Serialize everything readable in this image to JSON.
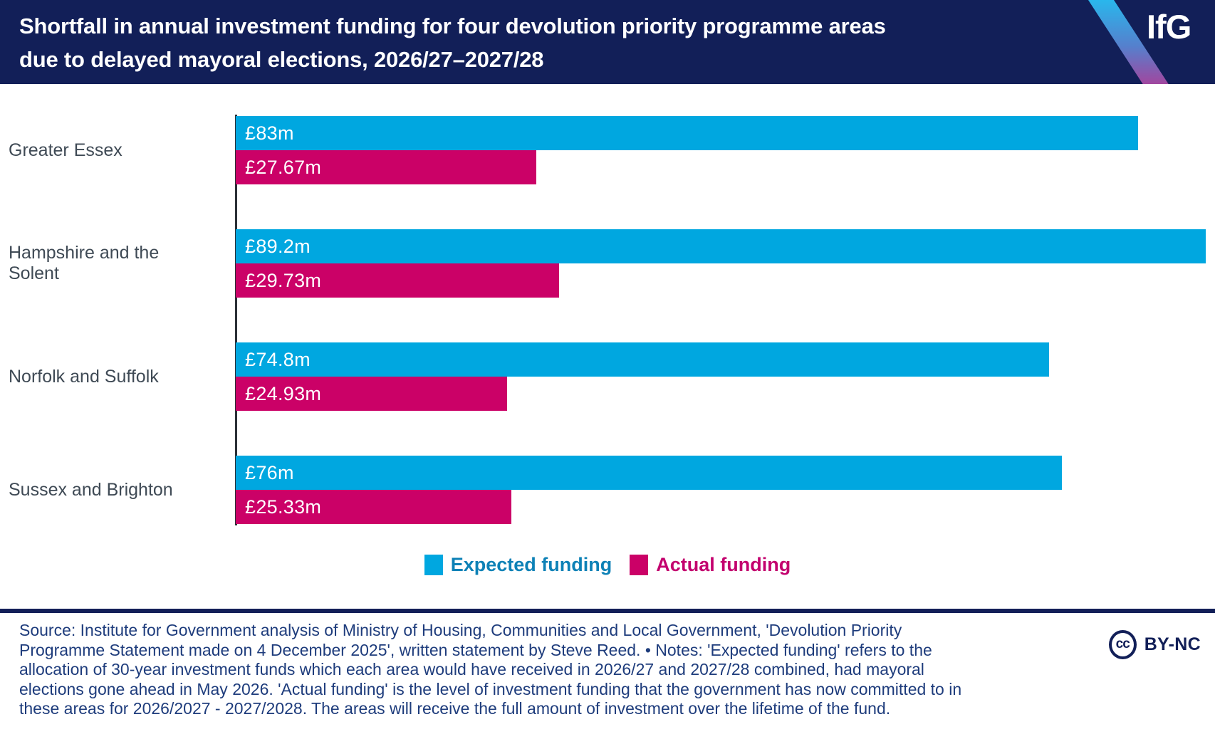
{
  "header": {
    "title": "Shortfall in annual investment funding for four devolution priority programme areas\ndue to delayed mayoral elections, 2026/27–2027/28",
    "logo": "IfG"
  },
  "chart_data": {
    "type": "bar",
    "orientation": "horizontal",
    "title": "Shortfall in annual investment funding for four devolution priority programme areas due to delayed mayoral elections, 2026/27–2027/28",
    "categories": [
      "Greater Essex",
      "Hampshire and the Solent",
      "Norfolk and Suffolk",
      "Sussex and Brighton"
    ],
    "series": [
      {
        "name": "Expected funding",
        "color": "#00a7e0",
        "values": [
          83,
          89.2,
          74.8,
          76
        ],
        "labels": [
          "£83m",
          "£89.2m",
          "£74.8m",
          "£76m"
        ]
      },
      {
        "name": "Actual funding",
        "color": "#cb0167",
        "values": [
          27.67,
          29.73,
          24.93,
          25.33
        ],
        "labels": [
          "£27.67m",
          "£29.73m",
          "£24.93m",
          "£25.33m"
        ]
      }
    ],
    "unit": "£m",
    "xlim": [
      0,
      89.2
    ],
    "grid": false,
    "legend_position": "bottom",
    "value_labels": "inside-start"
  },
  "legend": {
    "items": [
      {
        "label": "Expected funding",
        "swatch_color": "#00a7e0",
        "text_color": "#0d81b6"
      },
      {
        "label": "Actual funding",
        "swatch_color": "#cb0167",
        "text_color": "#c3006e"
      }
    ]
  },
  "footer": {
    "source_notes": [
      "Source: Institute for Government analysis of Ministry of Housing, Communities and Local Government, 'Devolution Priority",
      "Programme Statement made on 4 December 2025', written statement by Steve Reed. • Notes: 'Expected funding' refers to the",
      "allocation of 30-year investment funds which each area would have received in 2026/27 and 2027/28 combined, had mayoral",
      "elections gone ahead in May 2026. 'Actual funding' is the level of investment funding that the government has now committed to in",
      "these areas for 2026/2027 - 2027/2028. The areas will receive the full amount of investment over the lifetime of the fund."
    ],
    "license": {
      "cc_label": "cc",
      "name": "BY-NC"
    }
  },
  "colors": {
    "header_bg": "#121f58",
    "expected_bar": "#00a7e0",
    "actual_bar": "#cb0167",
    "category_label": "#3f4a55",
    "axis_line": "#2b3037",
    "footer_text": "#1e3c7c",
    "stripe_gradient_top": "#29b7ec",
    "stripe_gradient_bottom": "#a1479f"
  }
}
